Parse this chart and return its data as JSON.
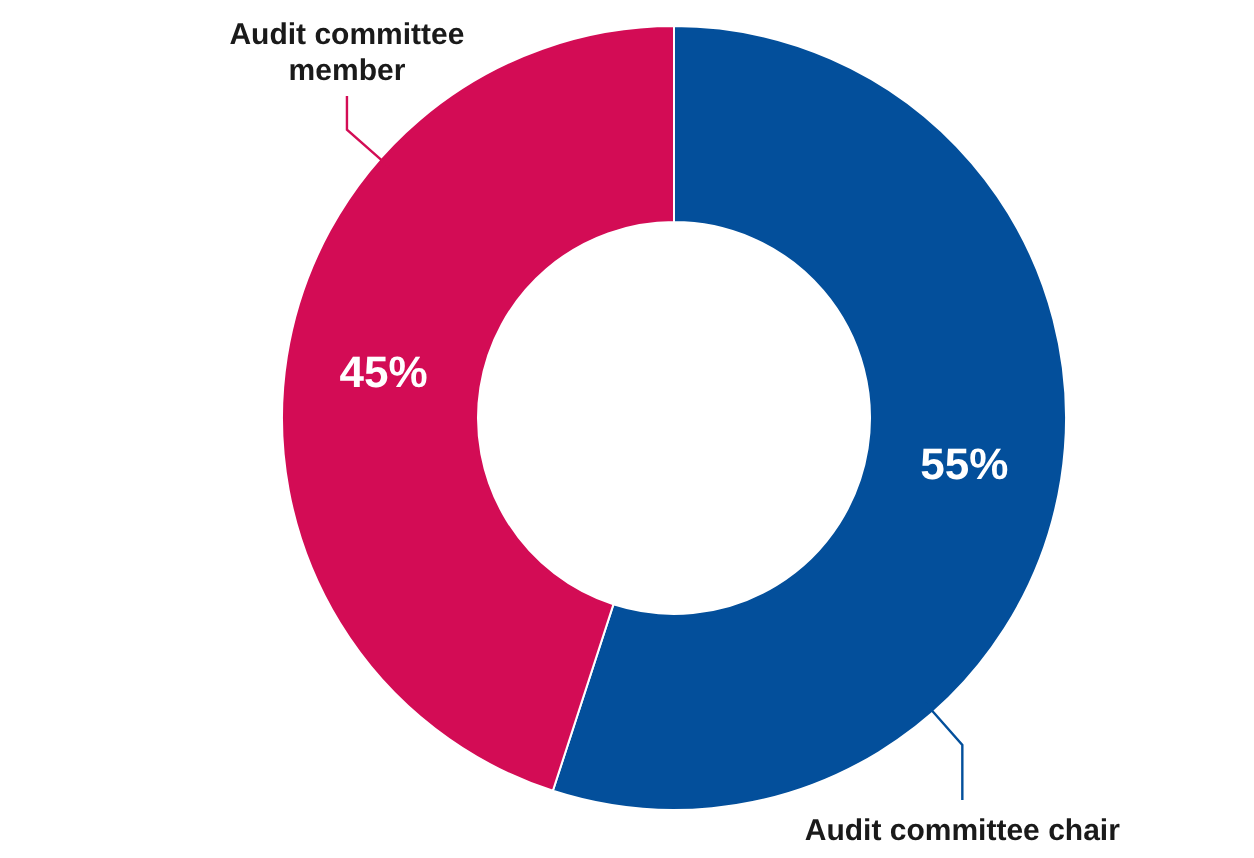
{
  "chart_data": {
    "type": "donut",
    "categories": [
      "Audit committee chair",
      "Audit committee member"
    ],
    "values": [
      55,
      45
    ],
    "colors": [
      "#034f9b",
      "#d30c55"
    ],
    "value_labels": [
      "55%",
      "45%"
    ]
  }
}
